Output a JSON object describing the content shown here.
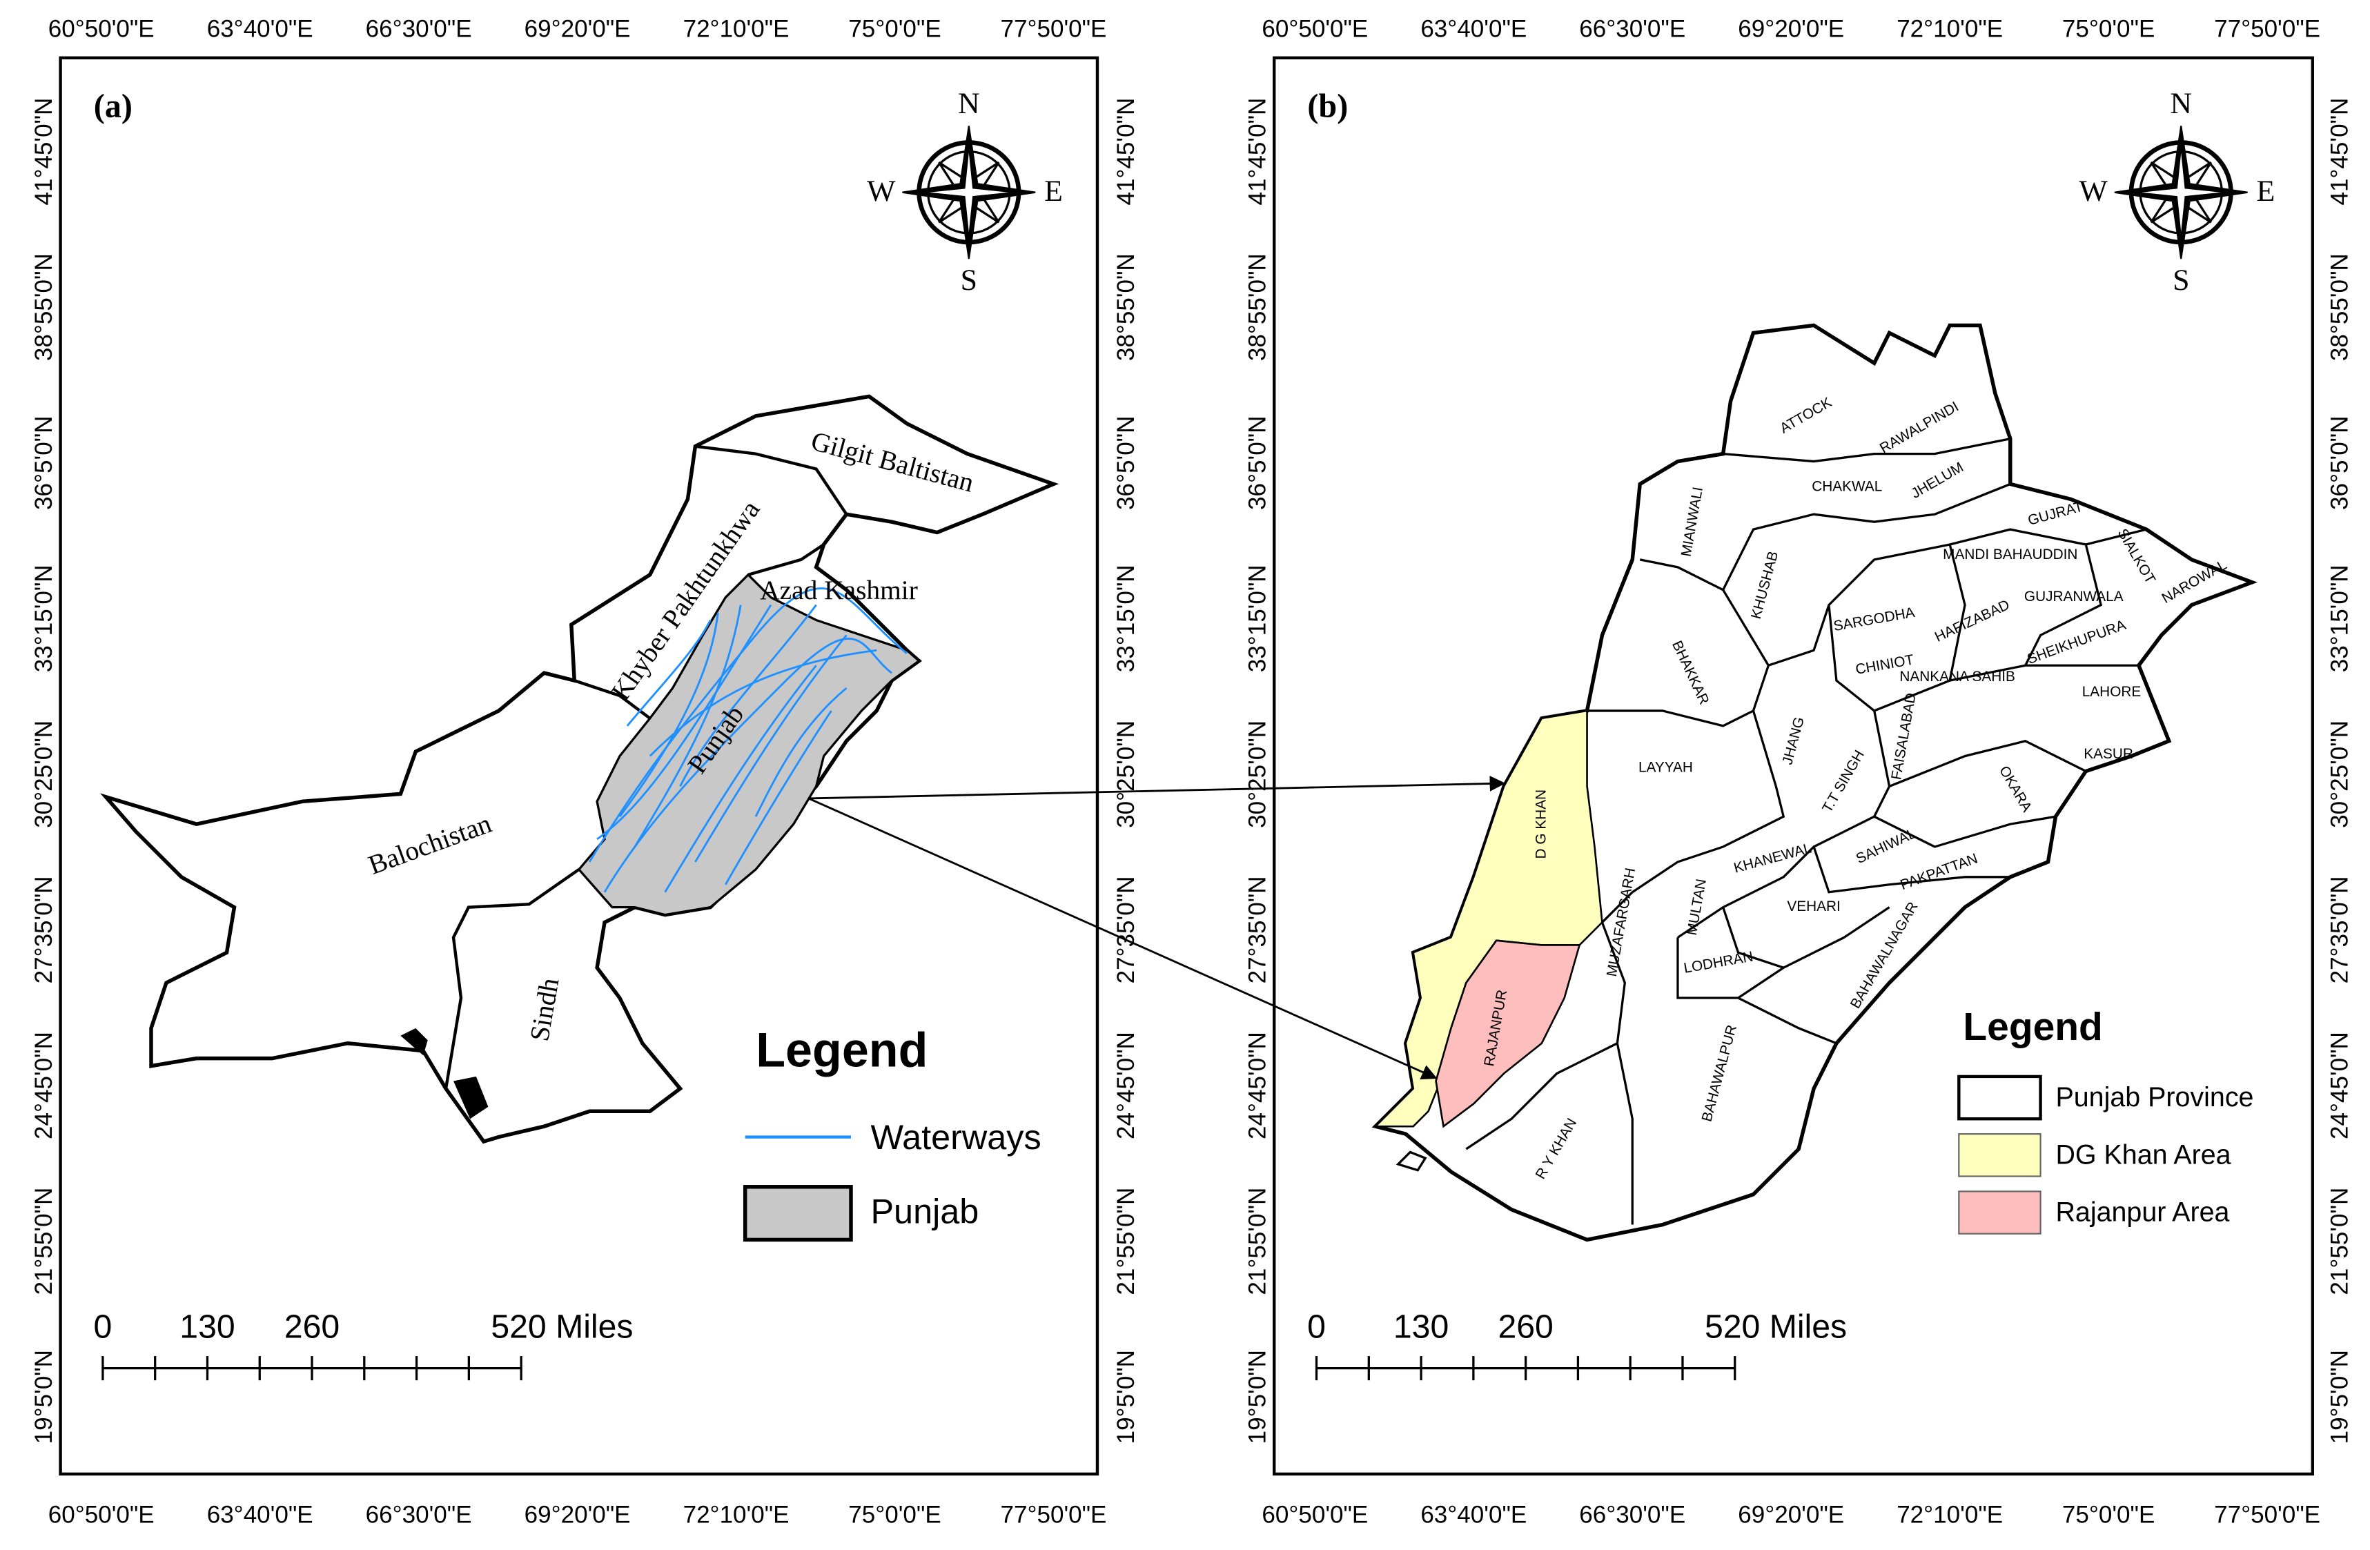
{
  "grid_labels": {
    "longitudes": [
      "60°50'0\"E",
      "63°40'0\"E",
      "66°30'0\"E",
      "69°20'0\"E",
      "72°10'0\"E",
      "75°0'0\"E",
      "77°50'0\"E"
    ],
    "latitudes": [
      "41°45'0\"N",
      "38°55'0\"N",
      "36°5'0\"N",
      "33°15'0\"N",
      "30°25'0\"N",
      "27°35'0\"N",
      "24°45'0\"N",
      "21°55'0\"N",
      "19°5'0\"N"
    ]
  },
  "panel_a": {
    "label": "(a)",
    "compass": {
      "n": "N",
      "s": "S",
      "e": "E",
      "w": "W"
    },
    "regions": [
      "Gilgit Baltistan",
      "Khyber Pakhtunkhwa",
      "Azad Kashmir",
      "Punjab",
      "Balochistan",
      "Sindh"
    ],
    "legend": {
      "title": "Legend",
      "items": [
        "Waterways",
        "Punjab"
      ]
    },
    "scale_bar": [
      "0",
      "130",
      "260",
      "520 Miles"
    ]
  },
  "panel_b": {
    "label": "(b)",
    "compass": {
      "n": "N",
      "s": "S",
      "e": "E",
      "w": "W"
    },
    "districts": [
      "ATTOCK",
      "RAWALPINDI",
      "CHAKWAL",
      "JHELUM",
      "GUJRAT",
      "SIALKOT",
      "MIANWALI",
      "MANDI BAHAUDDIN",
      "GUJRANWALA",
      "NAROWAL",
      "KHUSHAB",
      "SARGODHA",
      "HAFIZABAD",
      "CHINIOT",
      "SHEIKHUPURA",
      "BHAKKAR",
      "NANKANA SAHIB",
      "LAHORE",
      "JHANG",
      "T.T SINGH",
      "FAISALABAD",
      "KASUR",
      "LAYYAH",
      "D G KHAN",
      "OKARA",
      "KHANEWAL",
      "SAHIWAL",
      "MUZAFARGARH",
      "MULTAN",
      "PAKPATTAN",
      "VEHARI",
      "LODHRAN",
      "BAHAWALNAGAR",
      "RAJANPUR",
      "BAHAWALPUR",
      "R Y KHAN"
    ],
    "legend": {
      "title": "Legend",
      "items": [
        "Punjab Province",
        "DG Khan Area",
        "Rajanpur Area"
      ]
    },
    "scale_bar": [
      "0",
      "130",
      "260",
      "520 Miles"
    ]
  }
}
